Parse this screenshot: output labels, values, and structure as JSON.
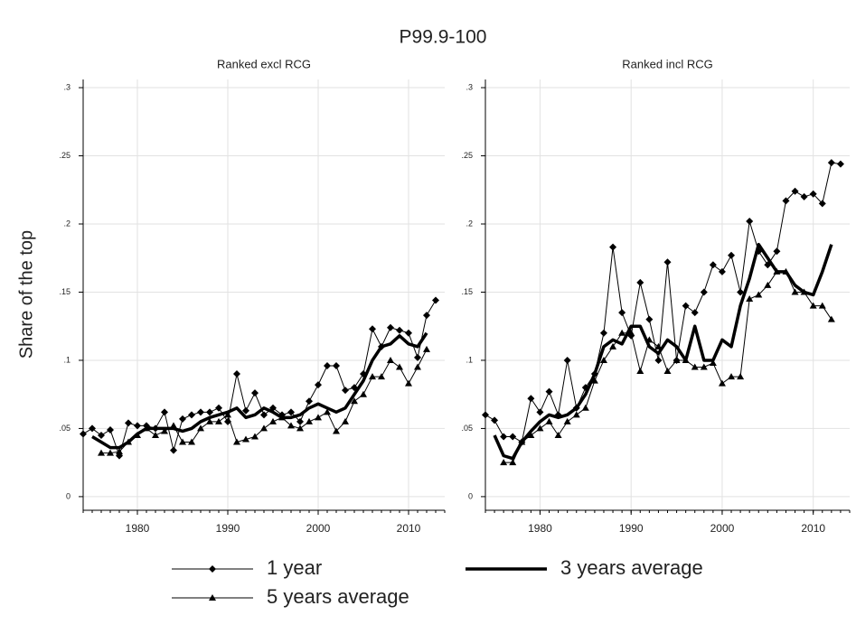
{
  "title": "P99.9-100",
  "y_label": "Share of the top",
  "chart_data": [
    {
      "type": "line",
      "title": "Ranked excl RCG",
      "x": [
        1974,
        1975,
        1976,
        1977,
        1978,
        1979,
        1980,
        1981,
        1982,
        1983,
        1984,
        1985,
        1986,
        1987,
        1988,
        1989,
        1990,
        1991,
        1992,
        1993,
        1994,
        1995,
        1996,
        1997,
        1998,
        1999,
        2000,
        2001,
        2002,
        2003,
        2004,
        2005,
        2006,
        2007,
        2008,
        2009,
        2010,
        2011,
        2012,
        2013
      ],
      "xlim": [
        1974,
        2014
      ],
      "xticks": [
        1980,
        1990,
        2000,
        2010
      ],
      "ylim": [
        -0.01,
        0.306
      ],
      "yticks": [
        0,
        {
          "value": 0.05,
          "label": ".05"
        },
        {
          "value": 0.1,
          "label": ".1"
        },
        {
          "value": 0.15,
          "label": ".15"
        },
        {
          "value": 0.2,
          "label": ".2"
        },
        {
          "value": 0.25,
          "label": ".25"
        },
        {
          "value": 0.3,
          "label": ".3"
        }
      ],
      "grid": true,
      "series": [
        {
          "name": "1 year",
          "color": "#000000",
          "marker": "diamond",
          "line_width": 1,
          "values": [
            0.046,
            0.05,
            0.045,
            0.049,
            0.03,
            0.054,
            0.052,
            0.052,
            0.05,
            0.062,
            0.034,
            0.057,
            0.06,
            0.062,
            0.062,
            0.065,
            0.055,
            0.09,
            0.063,
            0.076,
            0.06,
            0.065,
            0.06,
            0.062,
            0.055,
            0.07,
            0.082,
            0.096,
            0.096,
            0.078,
            0.08,
            0.09,
            0.123,
            0.11,
            0.124,
            0.122,
            0.12,
            0.102,
            0.133,
            0.144
          ]
        },
        {
          "name": "3 years average",
          "color": "#000000",
          "marker": "none",
          "line_width": 3.5,
          "values": [
            null,
            0.044,
            0.04,
            0.036,
            0.036,
            0.04,
            0.046,
            0.05,
            0.05,
            0.05,
            0.05,
            0.048,
            0.05,
            0.055,
            0.058,
            0.06,
            0.062,
            0.065,
            0.058,
            0.06,
            0.065,
            0.062,
            0.058,
            0.058,
            0.06,
            0.065,
            0.068,
            0.065,
            0.062,
            0.065,
            0.075,
            0.085,
            0.1,
            0.11,
            0.112,
            0.118,
            0.112,
            0.11,
            0.12,
            null
          ]
        },
        {
          "name": "5 years average",
          "color": "#000000",
          "marker": "triangle",
          "line_width": 1,
          "values": [
            null,
            null,
            0.032,
            0.032,
            0.033,
            0.04,
            0.045,
            0.05,
            0.045,
            0.048,
            0.052,
            0.04,
            0.04,
            0.05,
            0.055,
            0.055,
            0.06,
            0.04,
            0.042,
            0.044,
            0.05,
            0.055,
            0.058,
            0.052,
            0.05,
            0.055,
            0.058,
            0.062,
            0.048,
            0.055,
            0.07,
            0.075,
            0.088,
            0.088,
            0.1,
            0.095,
            0.083,
            0.095,
            0.108,
            null
          ]
        }
      ]
    },
    {
      "type": "line",
      "title": "Ranked incl RCG",
      "x": [
        1974,
        1975,
        1976,
        1977,
        1978,
        1979,
        1980,
        1981,
        1982,
        1983,
        1984,
        1985,
        1986,
        1987,
        1988,
        1989,
        1990,
        1991,
        1992,
        1993,
        1994,
        1995,
        1996,
        1997,
        1998,
        1999,
        2000,
        2001,
        2002,
        2003,
        2004,
        2005,
        2006,
        2007,
        2008,
        2009,
        2010,
        2011,
        2012,
        2013
      ],
      "xlim": [
        1974,
        2014
      ],
      "xticks": [
        1980,
        1990,
        2000,
        2010
      ],
      "ylim": [
        -0.01,
        0.306
      ],
      "yticks": [
        0,
        {
          "value": 0.05,
          "label": ".05"
        },
        {
          "value": 0.1,
          "label": ".1"
        },
        {
          "value": 0.15,
          "label": ".15"
        },
        {
          "value": 0.2,
          "label": ".2"
        },
        {
          "value": 0.25,
          "label": ".25"
        },
        {
          "value": 0.3,
          "label": ".3"
        }
      ],
      "grid": true,
      "series": [
        {
          "color": "#000000",
          "marker": "diamond",
          "line_width": 1,
          "values": [
            0.06,
            0.056,
            0.044,
            0.044,
            0.04,
            0.072,
            0.062,
            0.077,
            0.06,
            0.1,
            0.065,
            0.08,
            0.09,
            0.12,
            0.183,
            0.135,
            0.118,
            0.157,
            0.13,
            0.1,
            0.172,
            0.1,
            0.14,
            0.135,
            0.15,
            0.17,
            0.165,
            0.177,
            0.15,
            0.202,
            0.18,
            0.17,
            0.18,
            0.217,
            0.224,
            0.22,
            0.222,
            0.215,
            0.245,
            0.244
          ]
        },
        {
          "color": "#000000",
          "marker": "none",
          "line_width": 3.5,
          "values": [
            null,
            0.045,
            0.03,
            0.028,
            0.04,
            0.048,
            0.055,
            0.06,
            0.058,
            0.06,
            0.065,
            0.075,
            0.09,
            0.11,
            0.115,
            0.112,
            0.125,
            0.125,
            0.11,
            0.105,
            0.115,
            0.11,
            0.1,
            0.125,
            0.1,
            0.1,
            0.115,
            0.11,
            0.14,
            0.16,
            0.185,
            0.175,
            0.165,
            0.165,
            0.155,
            0.15,
            0.148,
            0.165,
            0.185,
            null
          ]
        },
        {
          "color": "#000000",
          "marker": "triangle",
          "line_width": 1,
          "values": [
            null,
            null,
            0.025,
            0.025,
            0.04,
            0.045,
            0.05,
            0.055,
            0.045,
            0.055,
            0.06,
            0.065,
            0.085,
            0.1,
            0.11,
            0.12,
            0.12,
            0.092,
            0.115,
            0.11,
            0.092,
            0.1,
            0.1,
            0.095,
            0.095,
            0.098,
            0.083,
            0.088,
            0.088,
            0.145,
            0.148,
            0.155,
            0.165,
            0.165,
            0.15,
            0.15,
            0.14,
            0.14,
            0.13,
            null
          ]
        }
      ]
    }
  ]
}
